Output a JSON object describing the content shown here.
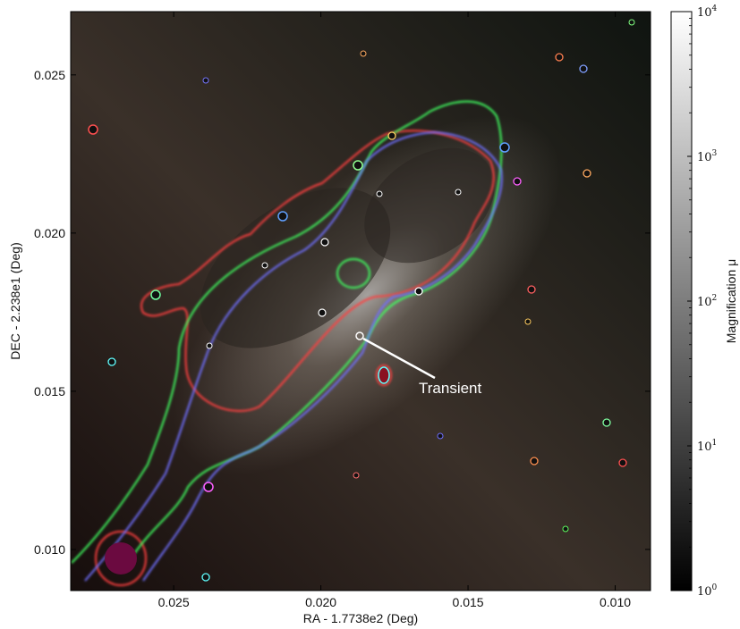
{
  "chart_data": {
    "type": "heatmap",
    "xlabel": "RA - 1.7738e2 (Deg)",
    "ylabel": "DEC - 2.238e1 (Deg)",
    "xlim": [
      0.0285,
      0.0088
    ],
    "ylim": [
      0.0087,
      0.027
    ],
    "x_ticks": [
      0.025,
      0.02,
      0.015,
      0.01
    ],
    "x_tick_labels": [
      "0.025",
      "0.020",
      "0.015",
      "0.010"
    ],
    "y_ticks": [
      0.01,
      0.015,
      0.02,
      0.025
    ],
    "y_tick_labels": [
      "0.010",
      "0.015",
      "0.020",
      "0.025"
    ],
    "colorbar": {
      "label": "Magnification μ",
      "scale": "log",
      "range": [
        1,
        10000
      ],
      "tick_labels": [
        {
          "base": "10",
          "exp": "0",
          "value": 1
        },
        {
          "base": "10",
          "exp": "1",
          "value": 10
        },
        {
          "base": "10",
          "exp": "2",
          "value": 100
        },
        {
          "base": "10",
          "exp": "3",
          "value": 1000
        },
        {
          "base": "10",
          "exp": "4",
          "value": 10000
        }
      ],
      "colors": [
        "#000000",
        "#ffffff"
      ]
    },
    "annotation": {
      "text": "Transient",
      "point": [
        0.0185,
        0.0167
      ],
      "text_position": [
        0.0168,
        0.015
      ]
    },
    "critical_curve_colors": {
      "red": "#ff3b3b",
      "green": "#3bff5a",
      "blue": "#6a6aff"
    }
  }
}
